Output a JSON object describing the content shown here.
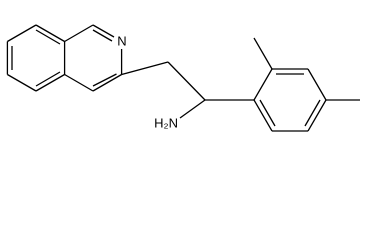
{
  "atoms": [
    {
      "label": "N"
    },
    {
      "label": "H₂N"
    }
  ]
}
